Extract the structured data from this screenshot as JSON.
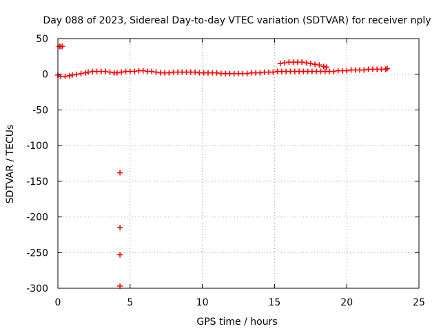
{
  "chart_data": {
    "type": "scatter",
    "title": "Day 088 of 2023, Sidereal Day-to-day VTEC variation (SDTVAR) for receiver nply",
    "xlabel": "GPS time / hours",
    "ylabel": "SDTVAR / TECUs",
    "xlim": [
      0,
      25
    ],
    "ylim": [
      -300,
      50
    ],
    "x_ticks": [
      0,
      5,
      10,
      15,
      20,
      25
    ],
    "y_ticks": [
      50,
      0,
      -50,
      -100,
      -150,
      -200,
      -250,
      -300
    ],
    "grid": true,
    "marker": "plus",
    "color": "#ff0000",
    "series": [
      {
        "values": [
          [
            0.1,
            39
          ],
          [
            0.2,
            39
          ],
          [
            0.3,
            39
          ],
          [
            0.0,
            -1
          ],
          [
            0.2,
            -3
          ],
          [
            0.5,
            -3
          ],
          [
            0.8,
            -2
          ],
          [
            1.0,
            -1
          ],
          [
            1.3,
            0
          ],
          [
            1.6,
            1
          ],
          [
            1.9,
            2
          ],
          [
            2.1,
            3
          ],
          [
            2.4,
            4
          ],
          [
            2.7,
            4
          ],
          [
            3.0,
            4
          ],
          [
            3.3,
            4
          ],
          [
            3.6,
            3
          ],
          [
            3.9,
            2
          ],
          [
            4.1,
            2
          ],
          [
            4.4,
            3
          ],
          [
            4.7,
            4
          ],
          [
            5.0,
            4
          ],
          [
            5.3,
            4
          ],
          [
            5.6,
            5
          ],
          [
            5.9,
            5
          ],
          [
            6.2,
            4
          ],
          [
            6.5,
            4
          ],
          [
            6.8,
            3
          ],
          [
            7.1,
            2
          ],
          [
            7.4,
            2
          ],
          [
            7.7,
            2
          ],
          [
            8.0,
            3
          ],
          [
            8.3,
            3
          ],
          [
            8.6,
            3
          ],
          [
            8.9,
            3
          ],
          [
            9.2,
            3
          ],
          [
            9.5,
            3
          ],
          [
            9.8,
            2
          ],
          [
            10.1,
            2
          ],
          [
            10.4,
            2
          ],
          [
            10.7,
            2
          ],
          [
            11.0,
            2
          ],
          [
            11.3,
            1
          ],
          [
            11.6,
            1
          ],
          [
            11.9,
            1
          ],
          [
            12.2,
            1
          ],
          [
            12.5,
            1
          ],
          [
            12.8,
            1
          ],
          [
            13.1,
            1
          ],
          [
            13.4,
            2
          ],
          [
            13.7,
            2
          ],
          [
            14.0,
            2
          ],
          [
            14.3,
            3
          ],
          [
            14.6,
            3
          ],
          [
            14.9,
            3
          ],
          [
            15.2,
            4
          ],
          [
            15.5,
            4
          ],
          [
            15.8,
            4
          ],
          [
            16.1,
            4
          ],
          [
            16.4,
            4
          ],
          [
            16.7,
            4
          ],
          [
            17.0,
            4
          ],
          [
            17.3,
            4
          ],
          [
            17.6,
            4
          ],
          [
            17.9,
            4
          ],
          [
            18.2,
            4
          ],
          [
            18.5,
            4
          ],
          [
            18.8,
            4
          ],
          [
            19.1,
            4
          ],
          [
            19.4,
            5
          ],
          [
            19.7,
            5
          ],
          [
            20.0,
            5
          ],
          [
            20.3,
            6
          ],
          [
            20.6,
            6
          ],
          [
            20.9,
            6
          ],
          [
            21.2,
            6
          ],
          [
            21.5,
            7
          ],
          [
            21.8,
            7
          ],
          [
            22.1,
            7
          ],
          [
            22.4,
            7
          ],
          [
            22.7,
            7
          ],
          [
            22.8,
            8
          ],
          [
            15.4,
            15
          ],
          [
            15.7,
            16
          ],
          [
            16.0,
            17
          ],
          [
            16.3,
            17
          ],
          [
            16.6,
            17
          ],
          [
            16.9,
            17
          ],
          [
            17.2,
            16
          ],
          [
            17.5,
            15
          ],
          [
            17.8,
            14
          ],
          [
            18.1,
            13
          ],
          [
            18.4,
            11
          ],
          [
            18.6,
            10
          ],
          [
            4.3,
            -138
          ],
          [
            4.3,
            -215
          ],
          [
            4.3,
            -253
          ],
          [
            4.3,
            -297
          ]
        ]
      }
    ]
  }
}
